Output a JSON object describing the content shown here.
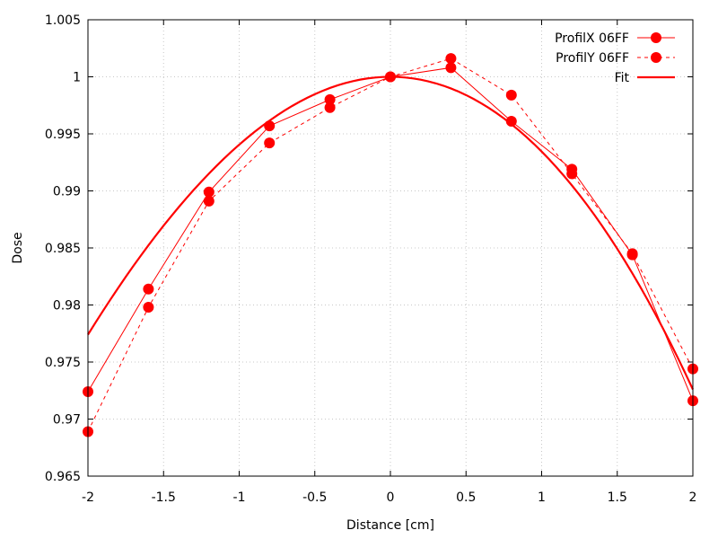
{
  "chart_data": {
    "type": "line",
    "title": "",
    "xlabel": "Distance [cm]",
    "ylabel": "Dose",
    "xlim": [
      -2,
      2
    ],
    "ylim": [
      0.965,
      1.005
    ],
    "x_ticks": [
      -2,
      -1.5,
      -1,
      -0.5,
      0,
      0.5,
      1,
      1.5,
      2
    ],
    "x_tick_labels": [
      "-2",
      "-1.5",
      "-1",
      "-0.5",
      "0",
      "0.5",
      "1",
      "1.5",
      "2"
    ],
    "y_ticks": [
      0.965,
      0.97,
      0.975,
      0.98,
      0.985,
      0.99,
      0.995,
      1,
      1.005
    ],
    "y_tick_labels": [
      "0.965",
      "0.97",
      "0.975",
      "0.98",
      "0.985",
      "0.99",
      "0.995",
      "1",
      "1.005"
    ],
    "grid": true,
    "legend_position": "top-right",
    "series": [
      {
        "name": "ProfilX 06FF",
        "style": "solid-markers",
        "x": [
          -2,
          -1.6,
          -1.2,
          -0.8,
          -0.4,
          0,
          0.4,
          0.8,
          1.2,
          1.6,
          2
        ],
        "y": [
          0.9724,
          0.9814,
          0.9899,
          0.9957,
          0.998,
          1.0,
          1.0008,
          0.9961,
          0.9919,
          0.9844,
          0.9716
        ]
      },
      {
        "name": "ProfilY 06FF",
        "style": "dashed-markers",
        "x": [
          -2,
          -1.6,
          -1.2,
          -0.8,
          -0.4,
          0,
          0.4,
          0.8,
          1.2,
          1.6,
          2
        ],
        "y": [
          0.9689,
          0.9798,
          0.9891,
          0.9942,
          0.9973,
          1.0,
          1.0016,
          0.9984,
          0.9915,
          0.9845,
          0.9744
        ]
      },
      {
        "name": "Fit",
        "style": "thick-line",
        "function": "1 - 0.00625*x^2 - 0.0003*x^3",
        "x_range": [
          -2,
          2
        ]
      }
    ],
    "color": "#ff0000"
  }
}
